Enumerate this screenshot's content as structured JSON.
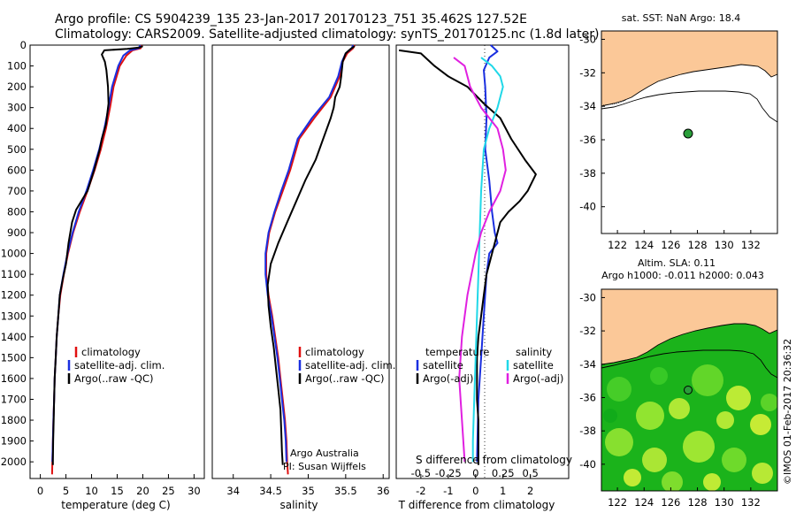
{
  "header": {
    "line1": "Argo profile: CS 5904239_135 23-Jan-2017 20170123_751 35.462S 127.52E",
    "line2": "Climatology: CARS2009. Satellite-adjusted climatology: synTS_20170125.nc (1.8d later)"
  },
  "colors": {
    "climatology": "#e01010",
    "satellite": "#1a2fe0",
    "argo": "#000000",
    "sat_salinity": "#20d8e8",
    "argo_adj_salinity": "#e020e0",
    "land": "#fbc898",
    "ocean_low": "#1bb31b",
    "ocean_high": "#e4f53a",
    "float_marker": "#2a9e3a"
  },
  "chart_data": [
    {
      "type": "line",
      "id": "temperature",
      "xlabel": "temperature (deg C)",
      "xticks": [
        0,
        5,
        10,
        15,
        20,
        25,
        30
      ],
      "xlim": [
        -2,
        32
      ],
      "ylim": [
        2080,
        0
      ],
      "yticks": [
        0,
        100,
        200,
        300,
        400,
        500,
        600,
        700,
        800,
        900,
        1000,
        1100,
        1200,
        1300,
        1400,
        1500,
        1600,
        1700,
        1800,
        1900,
        2000
      ],
      "legend": [
        "climatology",
        "satellite-adj. clim.",
        "Argo(..raw -QC)"
      ],
      "series": [
        {
          "name": "climatology",
          "color": "#e01010",
          "points": [
            [
              19.8,
              0
            ],
            [
              19.6,
              15
            ],
            [
              18,
              25
            ],
            [
              16.8,
              50
            ],
            [
              15.5,
              100
            ],
            [
              14.3,
              200
            ],
            [
              13.6,
              300
            ],
            [
              12.8,
              400
            ],
            [
              11.8,
              500
            ],
            [
              10.6,
              600
            ],
            [
              9.2,
              700
            ],
            [
              7.7,
              800
            ],
            [
              6.4,
              900
            ],
            [
              5.4,
              1000
            ],
            [
              4.6,
              1100
            ],
            [
              3.9,
              1200
            ],
            [
              3.5,
              1300
            ],
            [
              3.2,
              1400
            ],
            [
              3,
              1500
            ],
            [
              2.8,
              1600
            ],
            [
              2.7,
              1700
            ],
            [
              2.55,
              1800
            ],
            [
              2.45,
              1900
            ],
            [
              2.35,
              2000
            ],
            [
              2.3,
              2060
            ]
          ]
        },
        {
          "name": "satellite-adj. clim.",
          "color": "#1a2fe0",
          "points": [
            [
              19.5,
              0
            ],
            [
              19.2,
              15
            ],
            [
              17.5,
              25
            ],
            [
              16.2,
              50
            ],
            [
              15.2,
              100
            ],
            [
              14,
              200
            ],
            [
              13.3,
              300
            ],
            [
              12.5,
              400
            ],
            [
              11.5,
              500
            ],
            [
              10.3,
              600
            ],
            [
              9,
              700
            ],
            [
              7.5,
              800
            ],
            [
              6.3,
              900
            ],
            [
              5.3,
              1000
            ],
            [
              4.5,
              1100
            ],
            [
              3.8,
              1200
            ],
            [
              3.5,
              1300
            ],
            [
              3.2,
              1400
            ],
            [
              3,
              1500
            ],
            [
              2.8,
              1600
            ],
            [
              2.7,
              1700
            ],
            [
              2.55,
              1800
            ],
            [
              2.45,
              1900
            ],
            [
              2.35,
              2000
            ]
          ]
        },
        {
          "name": "Argo(..raw -QC)",
          "color": "#000000",
          "points": [
            [
              20,
              5
            ],
            [
              19.3,
              12
            ],
            [
              17,
              18
            ],
            [
              12.5,
              25
            ],
            [
              12,
              45
            ],
            [
              12.6,
              80
            ],
            [
              12.9,
              120
            ],
            [
              13.2,
              200
            ],
            [
              13.3,
              280
            ],
            [
              12.8,
              380
            ],
            [
              12,
              450
            ],
            [
              11.6,
              500
            ],
            [
              10.5,
              600
            ],
            [
              9.2,
              700
            ],
            [
              7,
              790
            ],
            [
              6.2,
              850
            ],
            [
              5.5,
              950
            ],
            [
              5,
              1050
            ],
            [
              4.4,
              1120
            ],
            [
              3.8,
              1200
            ],
            [
              3.5,
              1300
            ],
            [
              3.2,
              1400
            ],
            [
              3,
              1500
            ],
            [
              2.8,
              1600
            ],
            [
              2.7,
              1700
            ],
            [
              2.6,
              1800
            ],
            [
              2.5,
              1900
            ],
            [
              2.45,
              2000
            ],
            [
              2.45,
              2015
            ]
          ]
        }
      ]
    },
    {
      "type": "line",
      "id": "salinity",
      "xlabel": "salinity",
      "xticks": [
        34,
        34.5,
        35,
        35.5,
        36
      ],
      "xlim": [
        33.72,
        36.08
      ],
      "ylim": [
        2080,
        0
      ],
      "legend": [
        "climatology",
        "satellite-adj. clim.",
        "Argo(..raw -QC)"
      ],
      "series": [
        {
          "name": "climatology",
          "color": "#e01010",
          "points": [
            [
              35.62,
              0
            ],
            [
              35.6,
              15
            ],
            [
              35.52,
              40
            ],
            [
              35.46,
              80
            ],
            [
              35.42,
              150
            ],
            [
              35.3,
              250
            ],
            [
              35.08,
              350
            ],
            [
              34.88,
              450
            ],
            [
              34.76,
              600
            ],
            [
              34.66,
              700
            ],
            [
              34.56,
              800
            ],
            [
              34.48,
              900
            ],
            [
              34.44,
              1000
            ],
            [
              34.44,
              1100
            ],
            [
              34.47,
              1200
            ],
            [
              34.52,
              1300
            ],
            [
              34.56,
              1400
            ],
            [
              34.6,
              1500
            ],
            [
              34.63,
              1600
            ],
            [
              34.66,
              1700
            ],
            [
              34.69,
              1800
            ],
            [
              34.71,
              1900
            ],
            [
              34.72,
              2000
            ],
            [
              34.73,
              2060
            ]
          ]
        },
        {
          "name": "satellite-adj. clim.",
          "color": "#1a2fe0",
          "points": [
            [
              35.6,
              0
            ],
            [
              35.58,
              15
            ],
            [
              35.5,
              40
            ],
            [
              35.45,
              80
            ],
            [
              35.4,
              150
            ],
            [
              35.28,
              250
            ],
            [
              35.05,
              350
            ],
            [
              34.86,
              450
            ],
            [
              34.74,
              600
            ],
            [
              34.64,
              700
            ],
            [
              34.55,
              800
            ],
            [
              34.47,
              900
            ],
            [
              34.43,
              1000
            ],
            [
              34.43,
              1100
            ],
            [
              34.46,
              1200
            ],
            [
              34.51,
              1300
            ],
            [
              34.55,
              1400
            ],
            [
              34.59,
              1500
            ],
            [
              34.62,
              1600
            ],
            [
              34.65,
              1700
            ],
            [
              34.68,
              1800
            ],
            [
              34.7,
              1900
            ],
            [
              34.71,
              2000
            ]
          ]
        },
        {
          "name": "Argo(..raw -QC)",
          "color": "#000000",
          "points": [
            [
              35.62,
              5
            ],
            [
              35.56,
              20
            ],
            [
              35.5,
              40
            ],
            [
              35.46,
              80
            ],
            [
              35.44,
              150
            ],
            [
              35.42,
              200
            ],
            [
              35.36,
              250
            ],
            [
              35.34,
              300
            ],
            [
              35.3,
              350
            ],
            [
              35.2,
              450
            ],
            [
              35.1,
              550
            ],
            [
              34.96,
              650
            ],
            [
              34.84,
              750
            ],
            [
              34.72,
              850
            ],
            [
              34.6,
              950
            ],
            [
              34.5,
              1050
            ],
            [
              34.46,
              1150
            ],
            [
              34.47,
              1250
            ],
            [
              34.5,
              1350
            ],
            [
              34.54,
              1450
            ],
            [
              34.57,
              1550
            ],
            [
              34.6,
              1650
            ],
            [
              34.63,
              1750
            ],
            [
              34.64,
              1850
            ],
            [
              34.65,
              1950
            ],
            [
              34.66,
              2015
            ]
          ]
        }
      ],
      "annotations": [
        "Argo Australia",
        "PI: Susan Wijffels"
      ]
    },
    {
      "type": "line",
      "id": "difference",
      "xlabel": "T difference from climatology",
      "xticks": [
        -2,
        -1,
        0,
        1,
        2
      ],
      "xlim": [
        -2.9,
        3.4
      ],
      "top_axis_label": "S difference from climatology",
      "top_ticks": [
        "-0.5",
        "-0.25",
        "0",
        "0.25",
        "0.5"
      ],
      "top_tick_values": [
        -2,
        -1,
        0,
        1,
        2
      ],
      "ylim": [
        2080,
        0
      ],
      "legend": {
        "temperature_title": "temperature",
        "salinity_title": "salinity",
        "items": [
          "satellite",
          "Argo(-adj)",
          "satellite",
          "Argo(-adj)"
        ]
      },
      "series": [
        {
          "name": "T satellite",
          "color": "#1a2fe0",
          "points": [
            [
              0.55,
              0
            ],
            [
              0.8,
              30
            ],
            [
              0.5,
              60
            ],
            [
              0.3,
              120
            ],
            [
              0.35,
              200
            ],
            [
              0.4,
              350
            ],
            [
              0.35,
              500
            ],
            [
              0.5,
              650
            ],
            [
              0.6,
              800
            ],
            [
              0.7,
              900
            ],
            [
              0.8,
              950
            ],
            [
              0.5,
              1000
            ],
            [
              0.4,
              1100
            ],
            [
              0.3,
              1300
            ],
            [
              0.2,
              1500
            ],
            [
              0.1,
              1700
            ],
            [
              0.05,
              2000
            ]
          ]
        },
        {
          "name": "T Argo(-adj)",
          "color": "#000000",
          "points": [
            [
              -2.8,
              25
            ],
            [
              -2,
              40
            ],
            [
              -1.5,
              100
            ],
            [
              -1,
              150
            ],
            [
              -0.3,
              200
            ],
            [
              0.3,
              280
            ],
            [
              0.9,
              350
            ],
            [
              1.3,
              450
            ],
            [
              1.8,
              550
            ],
            [
              2.2,
              620
            ],
            [
              1.9,
              700
            ],
            [
              1.6,
              750
            ],
            [
              1.2,
              800
            ],
            [
              0.9,
              850
            ],
            [
              0.8,
              900
            ],
            [
              0.6,
              1000
            ],
            [
              0.4,
              1100
            ],
            [
              0.3,
              1200
            ],
            [
              0.2,
              1300
            ],
            [
              0.1,
              1400
            ],
            [
              0.05,
              1500
            ],
            [
              0.05,
              1600
            ],
            [
              0.05,
              1700
            ],
            [
              0.1,
              1800
            ],
            [
              0.1,
              1900
            ],
            [
              0.1,
              2015
            ]
          ]
        },
        {
          "name": "S satellite",
          "color": "#20d8e8",
          "points": [
            [
              0.2,
              60
            ],
            [
              0.6,
              100
            ],
            [
              0.9,
              150
            ],
            [
              1,
              200
            ],
            [
              0.8,
              300
            ],
            [
              0.5,
              400
            ],
            [
              0.3,
              500
            ],
            [
              0.2,
              700
            ],
            [
              0.15,
              900
            ],
            [
              0.1,
              1100
            ],
            [
              0.05,
              1300
            ],
            [
              0,
              1500
            ],
            [
              -0.05,
              1700
            ],
            [
              -0.1,
              1900
            ],
            [
              -0.1,
              2000
            ]
          ]
        },
        {
          "name": "S Argo(-adj)",
          "color": "#e020e0",
          "points": [
            [
              -0.8,
              60
            ],
            [
              -0.4,
              100
            ],
            [
              -0.2,
              200
            ],
            [
              0.2,
              300
            ],
            [
              0.8,
              400
            ],
            [
              1,
              500
            ],
            [
              1.1,
              600
            ],
            [
              0.9,
              700
            ],
            [
              0.5,
              800
            ],
            [
              0.2,
              900
            ],
            [
              0,
              1000
            ],
            [
              -0.3,
              1200
            ],
            [
              -0.5,
              1400
            ],
            [
              -0.6,
              1600
            ],
            [
              -0.5,
              1800
            ],
            [
              -0.4,
              2000
            ]
          ]
        }
      ]
    },
    {
      "type": "map",
      "id": "sst_map",
      "title": "sat. SST: NaN Argo: 18.4",
      "xticks": [
        "122",
        "124",
        "126",
        "128",
        "130",
        "132"
      ],
      "yticks": [
        "-30",
        "-32",
        "-34",
        "-36",
        "-38",
        "-40"
      ],
      "xlim": [
        120.8,
        134
      ],
      "ylim": [
        -41.6,
        -29.5
      ],
      "marker": [
        127.52,
        -35.46
      ]
    },
    {
      "type": "map",
      "id": "sla_map",
      "title_line1": "Altim. SLA: 0.11",
      "title_line2": "Argo h1000: -0.011 h2000: 0.043",
      "xticks": [
        "122",
        "124",
        "126",
        "128",
        "130",
        "132"
      ],
      "yticks": [
        "-30",
        "-32",
        "-34",
        "-36",
        "-38",
        "-40"
      ],
      "xlim": [
        120.8,
        134
      ],
      "ylim": [
        -41.6,
        -29.5
      ],
      "marker": [
        127.52,
        -35.46
      ]
    }
  ],
  "footer_stamp": "©IMOS 01-Feb-2017 20:36:32"
}
